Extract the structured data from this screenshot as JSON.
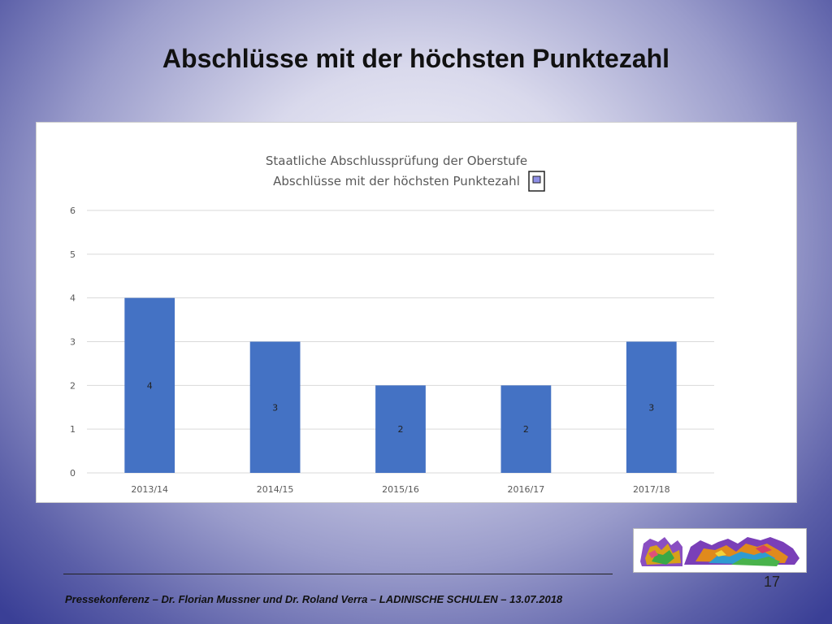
{
  "slide": {
    "title": "Abschlüsse mit der höchsten Punktezahl",
    "page_number": "17",
    "footer": "Pressekonferenz – Dr. Florian Mussner und Dr. Roland Verra – LADINISCHE SCHULEN – 13.07.2018"
  },
  "colors": {
    "bar": "#4472c4",
    "gridline": "#d9d9d9",
    "axis_text": "#595959"
  },
  "chart_data": {
    "type": "bar",
    "title": "Staatliche Abschlussprüfung der Oberstufe",
    "subtitle": "Abschlüsse mit der höchsten Punktezahl",
    "categories": [
      "2013/14",
      "2014/15",
      "2015/16",
      "2016/17",
      "2017/18"
    ],
    "values": [
      4,
      3,
      2,
      2,
      3
    ],
    "data_labels": [
      "4",
      "3",
      "2",
      "2",
      "3"
    ],
    "ylim": [
      0,
      6
    ],
    "yticks": [
      0,
      1,
      2,
      3,
      4,
      5,
      6
    ],
    "grid": true,
    "legend": "none"
  }
}
